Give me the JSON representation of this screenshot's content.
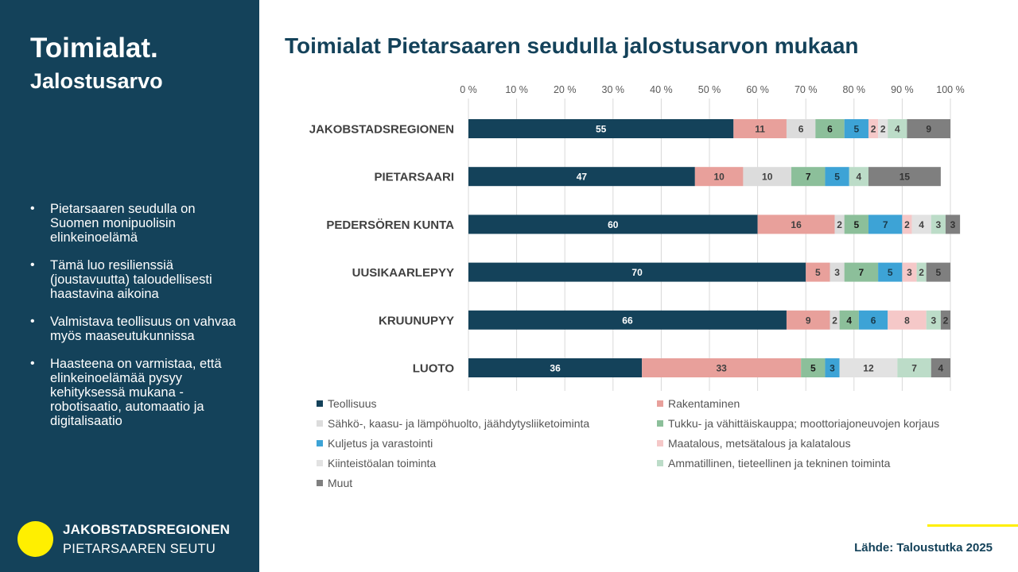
{
  "sidebar": {
    "title": "Toimialat.",
    "subtitle": "Jalostusarvo",
    "bullets": [
      "Pietarsaaren seudulla on Suomen monipuolisin elinkeinoelämä",
      "Tämä luo resilienssiä (joustavuutta) taloudellisesti haastavina aikoina",
      "Valmistava teollisuus on vahvaa myös maaseutukunnissa",
      "Haasteena on varmistaa, että elinkeinoelämää pysyy kehityksessä mukana - robotisaatio, automaatio ja digitalisaatio"
    ],
    "brand": {
      "name": "JAKOBSTADSREGIONEN",
      "sub": "PIETARSAAREN SEUTU"
    }
  },
  "source": "Lähde: Taloustutka 2025",
  "colors": {
    "sidebar_bg": "#14425a",
    "title": "#14425a",
    "accent": "#ffef00"
  },
  "chart_data": {
    "type": "bar",
    "orientation": "horizontal",
    "stacked": true,
    "title": "Toimialat Pietarsaaren seudulla jalostusarvon mukaan",
    "xlim": [
      0,
      100
    ],
    "x_ticks": [
      "0 %",
      "10 %",
      "20 %",
      "30 %",
      "40 %",
      "50 %",
      "60 %",
      "70 %",
      "80 %",
      "90 %",
      "100 %"
    ],
    "grid": true,
    "legend_position": "bottom",
    "categories": [
      "JAKOBSTADSREGIONEN",
      "PIETARSAARI",
      "PEDERSÖREN KUNTA",
      "UUSIKAARLEPYY",
      "KRUUNUPYY",
      "LUOTO"
    ],
    "series": [
      {
        "name": "Teollisuus",
        "color": "#14425a",
        "label_color": "#ffffff",
        "values": [
          55,
          47,
          60,
          70,
          66,
          36
        ]
      },
      {
        "name": "Rakentaminen",
        "color": "#e8a09b",
        "label_color": "#404040",
        "values": [
          11,
          10,
          16,
          5,
          9,
          33
        ]
      },
      {
        "name": "Sähkö-, kaasu- ja lämpöhuolto, jäähdytysliiketoiminta",
        "color": "#dcdcdc",
        "label_color": "#404040",
        "values": [
          6,
          10,
          2,
          3,
          2,
          0
        ]
      },
      {
        "name": "Tukku- ja vähittäiskauppa; moottoriajoneuvojen korjaus",
        "color": "#8cbf9a",
        "label_color": "#1a1a1a",
        "values": [
          6,
          7,
          5,
          7,
          4,
          5
        ]
      },
      {
        "name": "Kuljetus ja varastointi",
        "color": "#3da3d6",
        "label_color": "#1a3a4a",
        "values": [
          5,
          5,
          7,
          5,
          6,
          3
        ]
      },
      {
        "name": "Maatalous, metsätalous ja kalatalous",
        "color": "#f5c8c8",
        "label_color": "#404040",
        "values": [
          2,
          0,
          2,
          3,
          8,
          0
        ]
      },
      {
        "name": "Kiinteistöalan toiminta",
        "color": "#e2e2e2",
        "label_color": "#404040",
        "values": [
          2,
          0,
          4,
          0,
          0,
          12
        ]
      },
      {
        "name": "Ammatillinen, tieteellinen ja tekninen toiminta",
        "color": "#bcdcc8",
        "label_color": "#404040",
        "values": [
          4,
          4,
          3,
          2,
          3,
          7
        ]
      },
      {
        "name": "Muut",
        "color": "#7f7f7f",
        "label_color": "#333333",
        "values": [
          9,
          15,
          3,
          5,
          2,
          4
        ]
      }
    ]
  }
}
